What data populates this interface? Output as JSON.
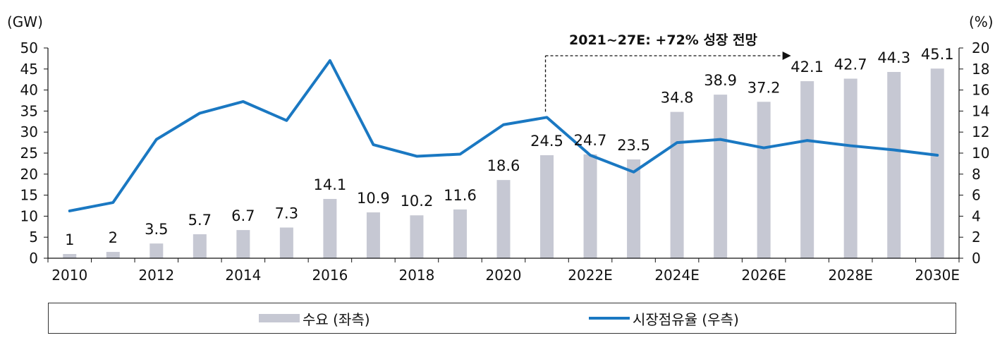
{
  "chart_data": {
    "type": "bar+line",
    "left_axis_unit": "(GW)",
    "right_axis_unit": "(%)",
    "categories": [
      "2010",
      "2011",
      "2012",
      "2013",
      "2014",
      "2015",
      "2016",
      "2017",
      "2018",
      "2019",
      "2020",
      "2021",
      "2022E",
      "2023E",
      "2024E",
      "2025E",
      "2026E",
      "2027E",
      "2028E",
      "2029E",
      "2030E"
    ],
    "x_tick_labels": [
      "2010",
      "2012",
      "2014",
      "2016",
      "2018",
      "2020",
      "2022E",
      "2024E",
      "2026E",
      "2028E",
      "2030E"
    ],
    "left_ylim": [
      0,
      50
    ],
    "left_yticks": [
      0,
      5,
      10,
      15,
      20,
      25,
      30,
      35,
      40,
      45,
      50
    ],
    "right_ylim": [
      0,
      20
    ],
    "right_yticks": [
      0,
      2,
      4,
      6,
      8,
      10,
      12,
      14,
      16,
      18,
      20
    ],
    "series": [
      {
        "name": "수요 (좌측)",
        "type": "bar",
        "axis": "left",
        "color": "#c6c8d3",
        "values": [
          1,
          1.5,
          3.5,
          5.7,
          6.7,
          7.3,
          14.1,
          10.9,
          10.2,
          11.6,
          18.6,
          24.5,
          24.7,
          23.5,
          34.8,
          38.9,
          37.2,
          42.1,
          42.7,
          44.3,
          45.1
        ],
        "labels": [
          "1",
          "2",
          "3.5",
          "5.7",
          "6.7",
          "7.3",
          "14.1",
          "10.9",
          "10.2",
          "11.6",
          "18.6",
          "24.5",
          "24.7",
          "23.5",
          "34.8",
          "38.9",
          "37.2",
          "42.1",
          "42.7",
          "44.3",
          "45.1"
        ]
      },
      {
        "name": "시장점유율 (우측)",
        "type": "line",
        "axis": "right",
        "color": "#1a78c2",
        "values": [
          4.5,
          5.3,
          11.3,
          13.8,
          14.9,
          13.1,
          18.8,
          10.8,
          9.7,
          9.9,
          12.7,
          13.4,
          9.8,
          8.2,
          11.0,
          11.3,
          10.5,
          11.2,
          10.7,
          10.3,
          9.8
        ]
      }
    ],
    "annotation": {
      "text": "2021~27E: +72% 성장 전망",
      "from_category": "2021",
      "to_category": "2027E"
    },
    "grid": false,
    "legend_position": "bottom"
  },
  "legend": {
    "demand_label": "수요 (좌측)",
    "share_label": "시장점유율 (우측)"
  }
}
